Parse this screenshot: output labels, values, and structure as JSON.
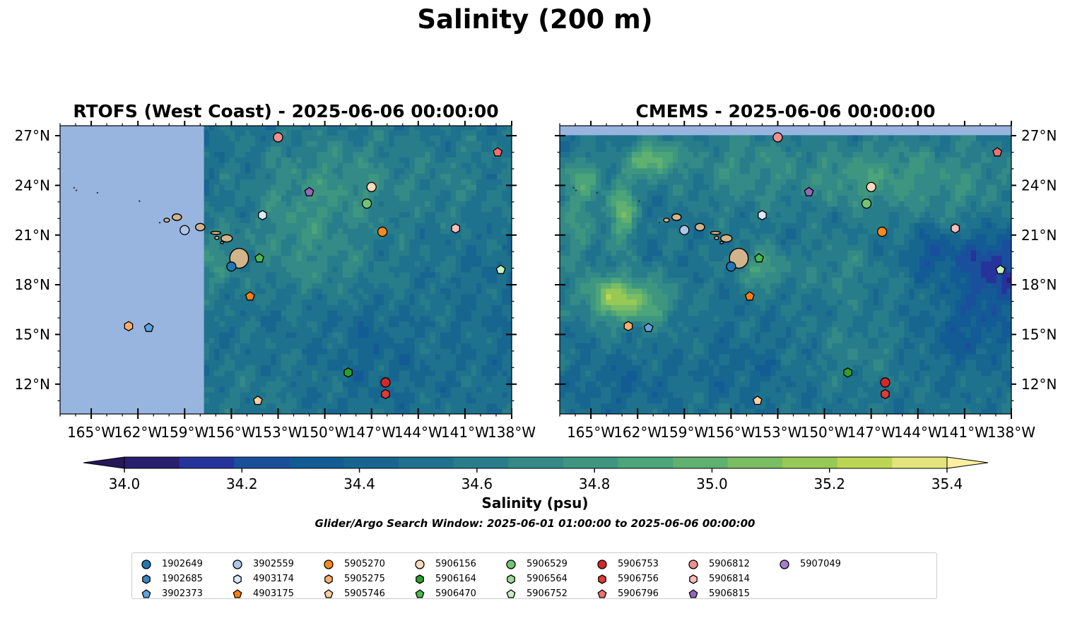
{
  "figure": {
    "title": "Salinity (200 m)",
    "colorbar_label": "Salinity (psu)",
    "search_window": "Glider/Argo Search Window: 2025-06-01 01:00:00 to 2025-06-06 00:00:00",
    "colorbar_ticks": [
      "34.0",
      "34.2",
      "34.4",
      "34.6",
      "34.8",
      "35.0",
      "35.2",
      "35.4"
    ],
    "colorbar_range": [
      34.0,
      35.4
    ],
    "colorbar_step": 0.1,
    "colormap": [
      "#2a1e6e",
      "#26339a",
      "#1a4f9c",
      "#135b94",
      "#176690",
      "#1f728d",
      "#287d8b",
      "#338a86",
      "#3e9680",
      "#4ba47a",
      "#60b06f",
      "#7abd62",
      "#98c957",
      "#bcd654",
      "#e3e47c"
    ],
    "extend_low_color": "#24175a",
    "extend_high_color": "#fbf0a0",
    "land_color": "#d2b48c",
    "nodata_color": "#98b5e0"
  },
  "maps": [
    {
      "id": "rtofs",
      "title": "RTOFS (West Coast) - 2025-06-06 00:00:00",
      "lat_labels_side": "left"
    },
    {
      "id": "cmems",
      "title": "CMEMS - 2025-06-06 00:00:00",
      "lat_labels_side": "right"
    }
  ],
  "axes": {
    "lon_range": [
      -167,
      -138
    ],
    "lat_range": [
      10.2,
      27.6
    ],
    "lon_ticks": [
      {
        "value": -165,
        "label": "165°W"
      },
      {
        "value": -162,
        "label": "162°W"
      },
      {
        "value": -159,
        "label": "159°W"
      },
      {
        "value": -156,
        "label": "156°W"
      },
      {
        "value": -153,
        "label": "153°W"
      },
      {
        "value": -150,
        "label": "150°W"
      },
      {
        "value": -147,
        "label": "147°W"
      },
      {
        "value": -144,
        "label": "144°W"
      },
      {
        "value": -141,
        "label": "141°W"
      },
      {
        "value": -138,
        "label": "138°W"
      }
    ],
    "lat_ticks": [
      {
        "value": 27,
        "label": "27°N"
      },
      {
        "value": 24,
        "label": "24°N"
      },
      {
        "value": 21,
        "label": "21°N"
      },
      {
        "value": 18,
        "label": "18°N"
      },
      {
        "value": 15,
        "label": "15°N"
      },
      {
        "value": 12,
        "label": "12°N"
      }
    ]
  },
  "platforms": [
    {
      "id": "1902649",
      "marker": "circle",
      "color": "#1f77b4",
      "lon": -156.0,
      "lat": 19.1
    },
    {
      "id": "1902685",
      "marker": "hexagon",
      "color": "#3c86c0",
      "lon": null,
      "lat": null
    },
    {
      "id": "3902373",
      "marker": "pentagon",
      "color": "#5fa2dd",
      "lon": -161.3,
      "lat": 15.4
    },
    {
      "id": "3902559",
      "marker": "circle",
      "color": "#aec7e8",
      "lon": -159.0,
      "lat": 21.3
    },
    {
      "id": "4903174",
      "marker": "hexagon",
      "color": "#dbe9fa",
      "lon": -154.0,
      "lat": 22.2
    },
    {
      "id": "4903175",
      "marker": "pentagon",
      "color": "#ff7f0e",
      "lon": -154.8,
      "lat": 17.3
    },
    {
      "id": "5905270",
      "marker": "circle",
      "color": "#f5891f",
      "lon": -146.3,
      "lat": 21.2
    },
    {
      "id": "5905275",
      "marker": "hexagon",
      "color": "#fdae6b",
      "lon": -162.6,
      "lat": 15.5
    },
    {
      "id": "5905746",
      "marker": "pentagon",
      "color": "#fdd0a2",
      "lon": -154.3,
      "lat": 11.0
    },
    {
      "id": "5906156",
      "marker": "circle",
      "color": "#fdd9bd",
      "lon": -147.0,
      "lat": 23.9
    },
    {
      "id": "5906164",
      "marker": "hexagon",
      "color": "#2ca02c",
      "lon": -148.5,
      "lat": 12.7
    },
    {
      "id": "5906470",
      "marker": "pentagon",
      "color": "#4db84d",
      "lon": -154.2,
      "lat": 19.6
    },
    {
      "id": "5906529",
      "marker": "circle",
      "color": "#74c476",
      "lon": -147.3,
      "lat": 22.9
    },
    {
      "id": "5906564",
      "marker": "hexagon",
      "color": "#a1d99b",
      "lon": null,
      "lat": null
    },
    {
      "id": "5906752",
      "marker": "pentagon",
      "color": "#c7f2c0",
      "lon": -138.7,
      "lat": 18.9
    },
    {
      "id": "5906753",
      "marker": "circle",
      "color": "#d62728",
      "lon": -146.1,
      "lat": 12.1
    },
    {
      "id": "5906756",
      "marker": "hexagon",
      "color": "#e03a3a",
      "lon": -146.1,
      "lat": 11.4
    },
    {
      "id": "5906796",
      "marker": "pentagon",
      "color": "#f07070",
      "lon": -138.9,
      "lat": 26.0
    },
    {
      "id": "5906812",
      "marker": "circle",
      "color": "#f08f8f",
      "lon": -153.0,
      "lat": 26.9
    },
    {
      "id": "5906814",
      "marker": "hexagon",
      "color": "#fcbcbc",
      "lon": -141.6,
      "lat": 21.4
    },
    {
      "id": "5906815",
      "marker": "pentagon",
      "color": "#9467bd",
      "lon": -151.0,
      "lat": 23.6
    },
    {
      "id": "5907049",
      "marker": "circle",
      "color": "#a87fcc",
      "lon": null,
      "lat": null
    }
  ],
  "islands": [
    {
      "name": "Niihau",
      "lon": -160.15,
      "lat": 21.9,
      "rx": 0.18,
      "ry": 0.12
    },
    {
      "name": "Kauai",
      "lon": -159.5,
      "lat": 22.08,
      "rx": 0.3,
      "ry": 0.2
    },
    {
      "name": "Oahu",
      "lon": -158.0,
      "lat": 21.48,
      "rx": 0.3,
      "ry": 0.22
    },
    {
      "name": "Molokai",
      "lon": -157.0,
      "lat": 21.13,
      "rx": 0.32,
      "ry": 0.09
    },
    {
      "name": "Lanai",
      "lon": -156.93,
      "lat": 20.83,
      "rx": 0.13,
      "ry": 0.1
    },
    {
      "name": "Maui",
      "lon": -156.3,
      "lat": 20.8,
      "rx": 0.36,
      "ry": 0.22
    },
    {
      "name": "Kahoolawe",
      "lon": -156.6,
      "lat": 20.55,
      "rx": 0.1,
      "ry": 0.07
    },
    {
      "name": "Hawaii",
      "lon": -155.5,
      "lat": 19.6,
      "rx": 0.6,
      "ry": 0.6
    }
  ],
  "nwhi_islets": [
    {
      "lon": -166.1,
      "lat": 23.85
    },
    {
      "lon": -165.95,
      "lat": 23.7
    },
    {
      "lon": -164.6,
      "lat": 23.55
    },
    {
      "lon": -161.9,
      "lat": 23.05
    },
    {
      "lon": -160.6,
      "lat": 21.75
    }
  ],
  "fields": {
    "rtofs": {
      "base": 34.55,
      "valid_lon_min": -157.9,
      "valid_lat_max": 27.6,
      "blobs": [
        {
          "lon": -149.0,
          "lat": 24.2,
          "rx": 5,
          "ry": 3,
          "amp": 0.22
        },
        {
          "lon": -152.0,
          "lat": 21.0,
          "rx": 3,
          "ry": 3,
          "amp": 0.16
        },
        {
          "lon": -157.0,
          "lat": 19.5,
          "rx": 1.5,
          "ry": 2,
          "amp": 0.2
        },
        {
          "lon": -149.0,
          "lat": 19.0,
          "rx": 4,
          "ry": 2,
          "amp": 0.1
        },
        {
          "lon": -141.0,
          "lat": 24.0,
          "rx": 3,
          "ry": 3,
          "amp": 0.08
        },
        {
          "lon": -147.0,
          "lat": 15.0,
          "rx": 3,
          "ry": 2,
          "amp": -0.08
        },
        {
          "lon": -146.0,
          "lat": 12.5,
          "rx": 4,
          "ry": 2,
          "amp": -0.06
        },
        {
          "lon": -139.0,
          "lat": 17.0,
          "rx": 3,
          "ry": 5,
          "amp": -0.05
        },
        {
          "lon": -155.0,
          "lat": 11.5,
          "rx": 3,
          "ry": 2,
          "amp": 0.06
        }
      ]
    },
    "cmems": {
      "base": 34.55,
      "valid_lon_min": -170,
      "valid_lat_max": 27.0,
      "blobs": [
        {
          "lon": -162.3,
          "lat": 17.0,
          "rx": 2.4,
          "ry": 1.4,
          "amp": 0.55
        },
        {
          "lon": -164.0,
          "lat": 17.5,
          "rx": 1.6,
          "ry": 1.2,
          "amp": 0.3
        },
        {
          "lon": -163.0,
          "lat": 22.5,
          "rx": 0.9,
          "ry": 2.0,
          "amp": 0.5
        },
        {
          "lon": -161.0,
          "lat": 25.6,
          "rx": 1.6,
          "ry": 1.0,
          "amp": 0.55
        },
        {
          "lon": -166.0,
          "lat": 22.0,
          "rx": 1.5,
          "ry": 3.0,
          "amp": 0.25
        },
        {
          "lon": -155.0,
          "lat": 25.0,
          "rx": 4.0,
          "ry": 2.5,
          "amp": 0.2
        },
        {
          "lon": -147.0,
          "lat": 24.5,
          "rx": 4.0,
          "ry": 2.0,
          "amp": 0.3
        },
        {
          "lon": -141.0,
          "lat": 24.0,
          "rx": 3.5,
          "ry": 3.0,
          "amp": 0.18
        },
        {
          "lon": -154.0,
          "lat": 19.0,
          "rx": 1.5,
          "ry": 1.2,
          "amp": 0.35
        },
        {
          "lon": -149.0,
          "lat": 19.0,
          "rx": 2.5,
          "ry": 2.0,
          "amp": 0.15
        },
        {
          "lon": -139.0,
          "lat": 19.0,
          "rx": 2.5,
          "ry": 2.5,
          "amp": -0.4
        },
        {
          "lon": -143.0,
          "lat": 20.0,
          "rx": 1.8,
          "ry": 1.5,
          "amp": -0.22
        },
        {
          "lon": -141.0,
          "lat": 15.0,
          "rx": 2.5,
          "ry": 2.0,
          "amp": -0.18
        },
        {
          "lon": -163.0,
          "lat": 12.0,
          "rx": 3.0,
          "ry": 1.5,
          "amp": -0.12
        },
        {
          "lon": -155.0,
          "lat": 13.0,
          "rx": 3.0,
          "ry": 2.0,
          "amp": -0.1
        },
        {
          "lon": -148.0,
          "lat": 14.0,
          "rx": 3.0,
          "ry": 2.0,
          "amp": 0.12
        },
        {
          "lon": -165.5,
          "lat": 24.5,
          "rx": 1.2,
          "ry": 1.2,
          "amp": 0.25
        }
      ]
    }
  }
}
